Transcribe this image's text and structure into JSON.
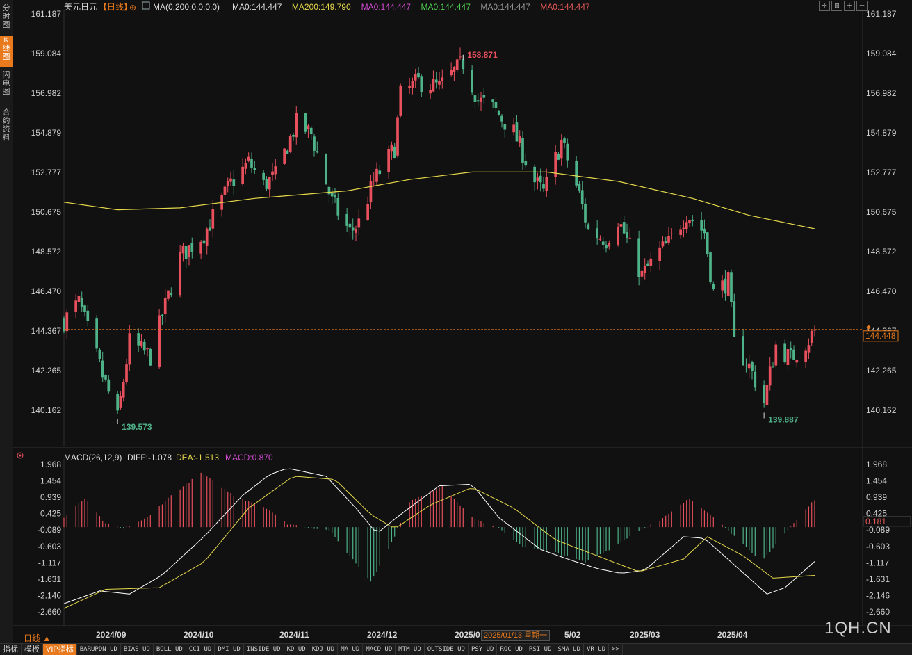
{
  "sidebar": {
    "tabs": [
      {
        "label": "分时图",
        "active": false
      },
      {
        "label": "K线图",
        "active": true
      },
      {
        "label": "闪电图",
        "active": false
      },
      {
        "label": "合约资料",
        "active": false
      }
    ]
  },
  "header": {
    "symbol": "美元日元",
    "period": "【日线】",
    "ma_settings": "MA(0,200,0,0,0,0)",
    "ma_values": [
      {
        "text": "MA0:144.447",
        "color": "#dddddd"
      },
      {
        "text": "MA200:149.790",
        "color": "#e6d84a"
      },
      {
        "text": "MA0:144.447",
        "color": "#d04bd0"
      },
      {
        "text": "MA0:144.447",
        "color": "#4ed14e"
      },
      {
        "text": "MA0:144.447",
        "color": "#9a9a9a"
      },
      {
        "text": "MA0:144.447",
        "color": "#e85a5a"
      }
    ]
  },
  "colors": {
    "up": "#e8505d",
    "down": "#4fb38a",
    "ma200": "#e6d84a",
    "diff": "#ffffff",
    "dea": "#e6d84a",
    "accent": "#e8791c"
  },
  "price_axis": {
    "ticks": [
      "161.187",
      "159.084",
      "156.982",
      "154.879",
      "152.777",
      "150.675",
      "148.572",
      "146.470",
      "144.367",
      "142.265",
      "140.162"
    ],
    "current_price": "144.448"
  },
  "annotations": {
    "high": "158.871",
    "low_left": "139.573",
    "low_right": "139.887"
  },
  "macd": {
    "title": "MACD(26,12,9)",
    "diff": "DIFF:-1.078",
    "dea": "DEA:-1.513",
    "macd": "MACD:0.870",
    "ticks": [
      "1.968",
      "1.454",
      "0.939",
      "0.425",
      "-0.089",
      "-0.603",
      "-1.117",
      "-1.631",
      "-2.146",
      "-2.660"
    ],
    "current": "0.181"
  },
  "x_axis": {
    "labels": [
      "2024/09",
      "2024/10",
      "2024/11",
      "2024/12",
      "2025/0",
      "5/02",
      "2025/03",
      "2025/04"
    ],
    "tooltip": "2025/01/13 星期一"
  },
  "period_label": "日线 ▲",
  "bottom_tabs": [
    "指标",
    "模板",
    "VIP指标",
    "BARUPDN_UD",
    "BIAS_UD",
    "BOLL_UD",
    "CCI_UD",
    "DMI_UD",
    "INSIDE_UD",
    "KD_UD",
    "KDJ_UD",
    "MA_UD",
    "MACD_UD",
    "MTM_UD",
    "OUTSIDE_UD",
    "PSY_UD",
    "ROC_UD",
    "RSI_UD",
    "SMA_UD",
    "VR_UD",
    ">>"
  ],
  "watermark": "1QH.CN",
  "chart_data": {
    "type": "candlestick",
    "anchors": [
      [
        "2024/08/29",
        144.9
      ],
      [
        "2024/09/03",
        145.9
      ],
      [
        "2024/09/11",
        142.0
      ],
      [
        "2024/09/16",
        139.7
      ],
      [
        "2024/09/20",
        143.8
      ],
      [
        "2024/09/27",
        143.0
      ],
      [
        "2024/10/01",
        145.2
      ],
      [
        "2024/10/07",
        148.3
      ],
      [
        "2024/10/15",
        149.5
      ],
      [
        "2024/10/24",
        152.2
      ],
      [
        "2024/10/30",
        153.3
      ],
      [
        "2024/11/04",
        152.1
      ],
      [
        "2024/11/08",
        152.6
      ],
      [
        "2024/11/15",
        155.4
      ],
      [
        "2024/11/20",
        154.8
      ],
      [
        "2024/11/27",
        151.2
      ],
      [
        "2024/12/03",
        149.6
      ],
      [
        "2024/12/06",
        150.1
      ],
      [
        "2024/12/11",
        152.3
      ],
      [
        "2024/12/18",
        154.1
      ],
      [
        "2024/12/20",
        156.9
      ],
      [
        "2024/12/26",
        157.6
      ],
      [
        "2025/01/02",
        157.3
      ],
      [
        "2025/01/10",
        158.6
      ],
      [
        "2025/01/15",
        156.6
      ],
      [
        "2025/01/20",
        156.2
      ],
      [
        "2025/01/27",
        154.9
      ],
      [
        "2025/02/03",
        152.3
      ],
      [
        "2025/02/06",
        151.7
      ],
      [
        "2025/02/12",
        154.4
      ],
      [
        "2025/02/18",
        151.6
      ],
      [
        "2025/02/21",
        149.7
      ],
      [
        "2025/02/27",
        149.2
      ],
      [
        "2025/03/03",
        150.3
      ],
      [
        "2025/03/11",
        147.3
      ],
      [
        "2025/03/17",
        148.6
      ],
      [
        "2025/03/20",
        149.0
      ],
      [
        "2025/03/26",
        150.6
      ],
      [
        "2025/04/01",
        149.6
      ],
      [
        "2025/04/04",
        146.4
      ],
      [
        "2025/04/09",
        147.0
      ],
      [
        "2025/04/11",
        143.7
      ],
      [
        "2025/04/16",
        142.5
      ],
      [
        "2025/04/21",
        140.6
      ],
      [
        "2025/04/25",
        143.6
      ],
      [
        "2025/04/30",
        142.9
      ],
      [
        "2025/05/06",
        143.9
      ],
      [
        "2025/05/08",
        144.45
      ]
    ],
    "ma200": [
      [
        "2024/08/29",
        151.2
      ],
      [
        "2024/09/16",
        150.8
      ],
      [
        "2024/10/07",
        150.9
      ],
      [
        "2024/11/01",
        151.4
      ],
      [
        "2024/12/02",
        151.8
      ],
      [
        "2024/12/23",
        152.4
      ],
      [
        "2025/01/13",
        152.8
      ],
      [
        "2025/02/07",
        152.8
      ],
      [
        "2025/03/03",
        152.3
      ],
      [
        "2025/03/28",
        151.4
      ],
      [
        "2025/04/16",
        150.5
      ],
      [
        "2025/05/08",
        149.79
      ]
    ],
    "ylim": [
      139.0,
      161.187
    ],
    "xlim": [
      "2024/08/29",
      "2025/05/08"
    ],
    "grid": false,
    "macd_series": {
      "diff": [
        [
          "2024/08/29",
          -2.4
        ],
        [
          "2024/09/10",
          -2.0
        ],
        [
          "2024/09/20",
          -2.1
        ],
        [
          "2024/10/01",
          -1.5
        ],
        [
          "2024/10/15",
          -0.3
        ],
        [
          "2024/10/28",
          1.0
        ],
        [
          "2024/11/06",
          1.65
        ],
        [
          "2024/11/12",
          1.85
        ],
        [
          "2024/11/25",
          1.6
        ],
        [
          "2024/12/05",
          0.6
        ],
        [
          "2024/12/12",
          -0.2
        ],
        [
          "2024/12/20",
          0.4
        ],
        [
          "2025/01/02",
          1.3
        ],
        [
          "2025/01/13",
          1.35
        ],
        [
          "2025/01/22",
          0.3
        ],
        [
          "2025/02/05",
          -0.7
        ],
        [
          "2025/02/14",
          -1.0
        ],
        [
          "2025/02/24",
          -1.3
        ],
        [
          "2025/03/04",
          -1.45
        ],
        [
          "2025/03/12",
          -1.35
        ],
        [
          "2025/03/25",
          -0.3
        ],
        [
          "2025/04/01",
          -0.35
        ],
        [
          "2025/04/10",
          -1.1
        ],
        [
          "2025/04/22",
          -2.1
        ],
        [
          "2025/04/28",
          -1.9
        ],
        [
          "2025/05/08",
          -1.078
        ]
      ],
      "dea": [
        [
          "2024/08/29",
          -2.55
        ],
        [
          "2024/09/12",
          -1.95
        ],
        [
          "2024/09/30",
          -1.9
        ],
        [
          "2024/10/15",
          -1.1
        ],
        [
          "2024/10/30",
          0.6
        ],
        [
          "2024/11/14",
          1.6
        ],
        [
          "2024/11/28",
          1.5
        ],
        [
          "2024/12/10",
          0.4
        ],
        [
          "2024/12/18",
          -0.05
        ],
        [
          "2024/12/30",
          0.7
        ],
        [
          "2025/01/13",
          1.25
        ],
        [
          "2025/01/27",
          0.6
        ],
        [
          "2025/02/10",
          -0.4
        ],
        [
          "2025/02/24",
          -0.9
        ],
        [
          "2025/03/10",
          -1.4
        ],
        [
          "2025/03/25",
          -1.0
        ],
        [
          "2025/04/02",
          -0.3
        ],
        [
          "2025/04/14",
          -0.9
        ],
        [
          "2025/04/24",
          -1.6
        ],
        [
          "2025/05/08",
          -1.513
        ]
      ],
      "hist": [
        [
          "2024/08/29",
          0.3
        ],
        [
          "2024/09/05",
          0.9
        ],
        [
          "2024/09/12",
          0.1
        ],
        [
          "2024/09/18",
          -0.05
        ],
        [
          "2024/09/26",
          0.3
        ],
        [
          "2024/10/04",
          1.0
        ],
        [
          "2024/10/14",
          1.7
        ],
        [
          "2024/10/25",
          1.0
        ],
        [
          "2024/11/05",
          0.6
        ],
        [
          "2024/11/12",
          0.1
        ],
        [
          "2024/11/26",
          -0.1
        ],
        [
          "2024/12/10",
          -1.7
        ],
        [
          "2024/12/16",
          -0.7
        ],
        [
          "2024/12/23",
          0.8
        ],
        [
          "2025/01/03",
          1.3
        ],
        [
          "2025/01/13",
          0.3
        ],
        [
          "2025/01/22",
          -0.05
        ],
        [
          "2025/01/30",
          -0.6
        ],
        [
          "2025/02/10",
          -0.8
        ],
        [
          "2025/02/20",
          -1.1
        ],
        [
          "2025/02/28",
          -0.7
        ],
        [
          "2025/03/10",
          -0.1
        ],
        [
          "2025/03/17",
          0.2
        ],
        [
          "2025/03/27",
          0.9
        ],
        [
          "2025/04/03",
          0.4
        ],
        [
          "2025/04/09",
          -0.1
        ],
        [
          "2025/04/20",
          -1.1
        ],
        [
          "2025/04/28",
          -0.2
        ],
        [
          "2025/05/08",
          0.87
        ]
      ]
    },
    "macd_ylim": [
      -2.66,
      1.968
    ]
  }
}
